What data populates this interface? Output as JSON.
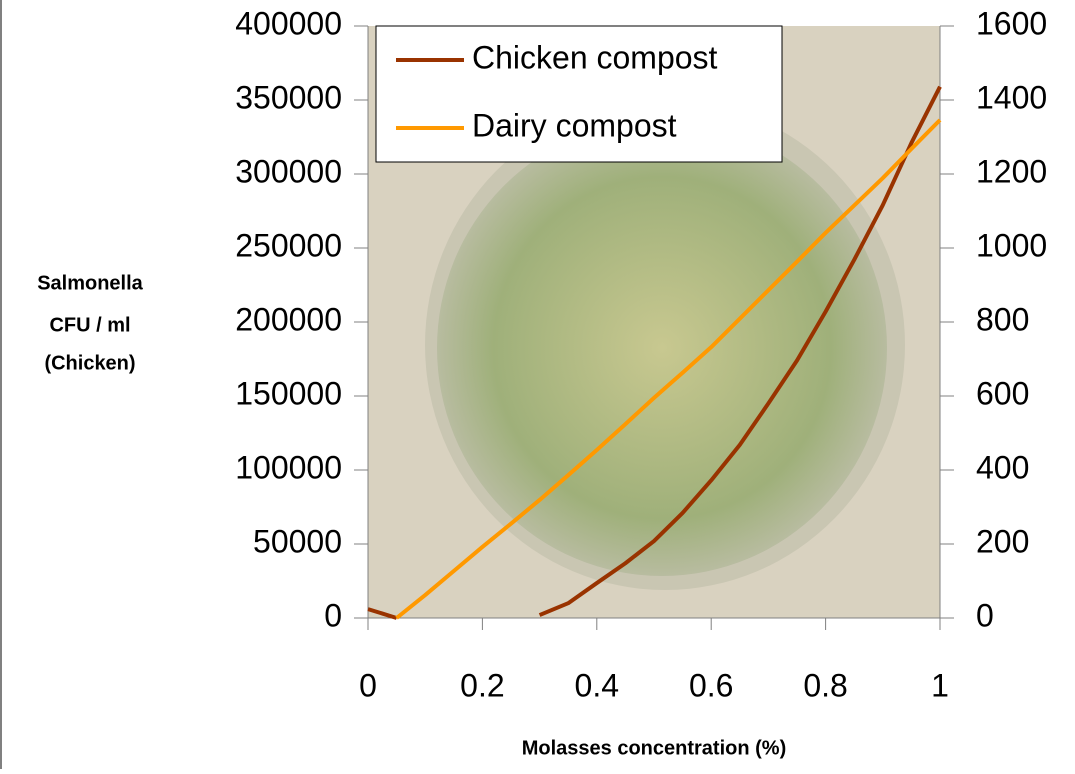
{
  "chart_data": {
    "type": "line",
    "xlabel": "Molasses concentration (%)",
    "ylabel": [
      "Salmonella",
      "CFU / ml",
      "(Chicken)"
    ],
    "x": [
      0,
      0.05,
      0.1,
      0.15,
      0.2,
      0.25,
      0.3,
      0.35,
      0.4,
      0.45,
      0.5,
      0.55,
      0.6,
      0.65,
      0.7,
      0.75,
      0.8,
      0.85,
      0.9,
      0.95,
      1
    ],
    "series": [
      {
        "name": "Chicken compost",
        "color": "#993300",
        "axis": "y",
        "values": [
          6000,
          0,
          null,
          null,
          null,
          null,
          2000,
          10000,
          23600,
          37000,
          52000,
          71000,
          93000,
          117000,
          145000,
          174000,
          207000,
          242000,
          279000,
          321000,
          359000
        ]
      },
      {
        "name": "Dairy compost",
        "color": "#ff9900",
        "axis": "y2",
        "values": [
          null,
          0,
          62,
          127,
          192,
          255,
          319,
          386,
          454,
          524,
          595,
          663,
          732,
          809,
          886,
          963,
          1041,
          1115,
          1189,
          1268,
          1346
        ]
      }
    ],
    "xlim": [
      0,
      1
    ],
    "xticks": [
      0,
      0.2,
      0.4,
      0.6,
      0.8,
      1
    ],
    "ylim": [
      0,
      400000
    ],
    "yticks": [
      0,
      50000,
      100000,
      150000,
      200000,
      250000,
      300000,
      350000,
      400000
    ],
    "y2lim": [
      0,
      1600
    ],
    "y2ticks": [
      0,
      200,
      400,
      600,
      800,
      1000,
      1200,
      1400,
      1600
    ],
    "legend": "top-left"
  }
}
